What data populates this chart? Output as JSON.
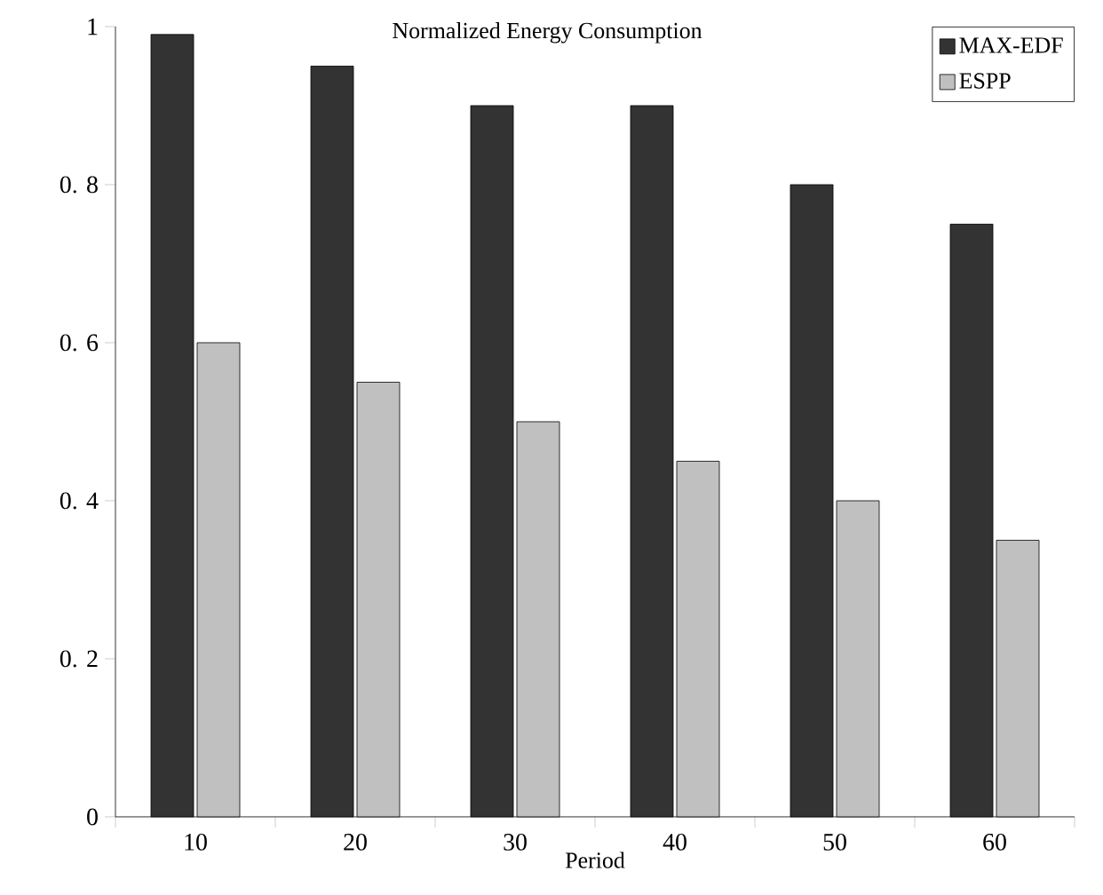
{
  "chart_data": {
    "type": "bar",
    "title": "Normalized Energy Consumption",
    "xlabel": "Period",
    "categories": [
      "10",
      "20",
      "30",
      "40",
      "50",
      "60"
    ],
    "series": [
      {
        "name": "MAX-EDF",
        "color": "#333333",
        "values": [
          0.99,
          0.95,
          0.9,
          0.9,
          0.8,
          0.75
        ]
      },
      {
        "name": "ESPP",
        "color": "#c0c0c0",
        "values": [
          0.6,
          0.55,
          0.5,
          0.45,
          0.4,
          0.35
        ]
      }
    ],
    "ylim": [
      0,
      1
    ],
    "yticks": [
      0,
      {
        "value": 0.2,
        "label": "0. 2"
      },
      {
        "value": 0.4,
        "label": "0. 4"
      },
      {
        "value": 0.6,
        "label": "0. 6"
      },
      {
        "value": 0.8,
        "label": "0. 8"
      },
      1
    ],
    "legend": "top right",
    "grid": false
  }
}
